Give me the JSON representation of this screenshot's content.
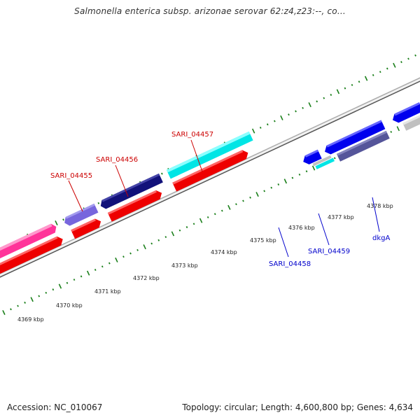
{
  "title": "Salmonella enterica subsp. arizonae serovar 62:z4,z23:--, co...",
  "footer": {
    "accession": "Accession: NC_010067",
    "topology": "Topology: circular; Length: 4,600,800 bp; Genes: 4,634"
  },
  "colors": {
    "backbone": "#8c8c8c",
    "tick": "#1a7f1a",
    "label_top": "#cc0000",
    "label_bottom": "#0000cc"
  },
  "scale_labels": [
    "4369 kbp",
    "4370 kbp",
    "4371 kbp",
    "4372 kbp",
    "4373 kbp",
    "4374 kbp",
    "4375 kbp",
    "4376 kbp",
    "4377 kbp",
    "4378 kbp"
  ],
  "gene_labels_top": [
    "SARI_04455",
    "SARI_04456",
    "SARI_04457"
  ],
  "gene_labels_bottom": [
    "SARI_04458",
    "SARI_04459",
    "dkgA"
  ],
  "features": {
    "top_row_colors": [
      "#ff3399",
      "#7766dd",
      "#11117a",
      "#00e5e5"
    ],
    "red_row_color": "#ee0000",
    "right_colors": [
      "#0000ee",
      "#55559a",
      "#c0c0c0",
      "#00e5e5"
    ]
  }
}
